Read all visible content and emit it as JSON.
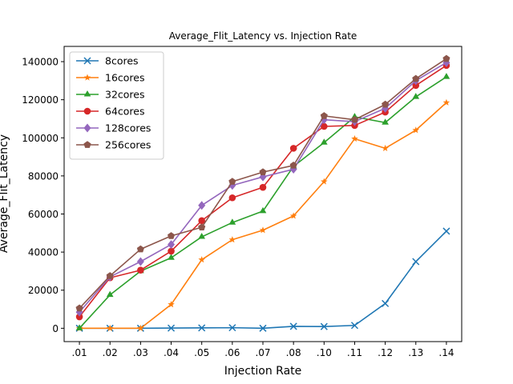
{
  "chart_data": {
    "type": "line",
    "title": "Average_Flit_Latency vs. Injection Rate",
    "xlabel": "Injection Rate",
    "ylabel": "Average_Flit_Latency",
    "categories": [
      ".01",
      ".02",
      ".03",
      ".04",
      ".05",
      ".06",
      ".07",
      ".08",
      ".10",
      ".11",
      ".12",
      ".13",
      ".14"
    ],
    "ylim": [
      -7000,
      148000
    ],
    "yticks": [
      0,
      20000,
      40000,
      60000,
      80000,
      100000,
      120000,
      140000
    ],
    "ytick_labels": [
      "0",
      "20000",
      "40000",
      "60000",
      "80000",
      "100000",
      "120000",
      "140000"
    ],
    "grid": false,
    "legend_position": "upper-left",
    "series": [
      {
        "name": "8cores",
        "color": "#1f77b4",
        "marker": "x",
        "values": [
          0,
          0,
          0,
          100,
          200,
          300,
          0,
          1000,
          900,
          1500,
          13000,
          35000,
          51000
        ]
      },
      {
        "name": "16cores",
        "color": "#ff7f0e",
        "marker": "star",
        "values": [
          0,
          0,
          0,
          12500,
          36000,
          46500,
          51500,
          59000,
          77000,
          99500,
          94500,
          104000,
          118500
        ]
      },
      {
        "name": "32cores",
        "color": "#2ca02c",
        "marker": "triangle",
        "values": [
          0,
          17500,
          30000,
          37000,
          48000,
          55500,
          61500,
          85000,
          97500,
          111000,
          108000,
          121500,
          132000
        ]
      },
      {
        "name": "64cores",
        "color": "#d62728",
        "marker": "circle",
        "values": [
          6000,
          26500,
          30500,
          40500,
          56500,
          68500,
          74000,
          94500,
          106000,
          106500,
          113500,
          127500,
          138000
        ]
      },
      {
        "name": "128cores",
        "color": "#9467bd",
        "marker": "diamond",
        "values": [
          8500,
          27000,
          35000,
          44000,
          64500,
          75000,
          79500,
          83500,
          109500,
          108500,
          115500,
          130000,
          139500
        ]
      },
      {
        "name": "256cores",
        "color": "#8c564b",
        "marker": "pentagon",
        "values": [
          10500,
          27500,
          41500,
          48500,
          53000,
          77000,
          82000,
          85500,
          111500,
          109500,
          117500,
          131000,
          141500
        ]
      }
    ]
  }
}
